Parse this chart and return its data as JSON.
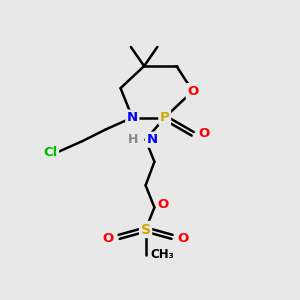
{
  "background_color": "#e8e8e8",
  "bond_color": "#000000",
  "atom_colors": {
    "N": "#0000ff",
    "O": "#ff0000",
    "P": "#ccaa00",
    "S": "#ccaa00",
    "Cl": "#00bb00",
    "H": "#888888",
    "C": "#000000"
  },
  "figsize": [
    3.0,
    3.0
  ],
  "dpi": 100
}
